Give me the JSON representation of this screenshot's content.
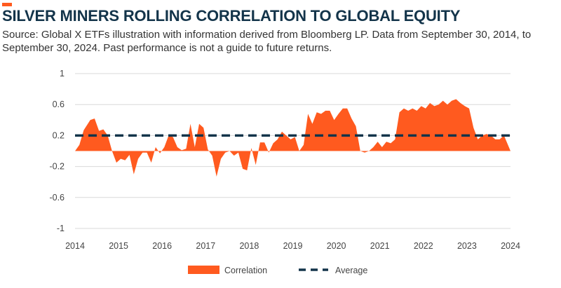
{
  "header": {
    "title": "SILVER MINERS ROLLING CORRELATION TO GLOBAL EQUITY",
    "subtitle": "Source: Global X ETFs illustration with information derived from Bloomberg LP. Data from September 30, 2014, to September 30, 2024. Past performance is not a guide to future returns."
  },
  "colors": {
    "accent": "#ff5a1f",
    "area": "#ff5a1f",
    "average_line": "#13344a",
    "title": "#13344a",
    "grid": "#d9d9d9"
  },
  "chart_data": {
    "type": "area",
    "title": "SILVER MINERS ROLLING CORRELATION TO GLOBAL EQUITY",
    "xlabel": "",
    "ylabel": "",
    "xlim": [
      2014,
      2024
    ],
    "ylim": [
      -1,
      1
    ],
    "grid": true,
    "legend_position": "bottom-center",
    "x_ticks": [
      "2014",
      "2015",
      "2016",
      "2017",
      "2018",
      "2019",
      "2020",
      "2021",
      "2022",
      "2023",
      "2024"
    ],
    "y_ticks": [
      {
        "value": 1,
        "label": "1"
      },
      {
        "value": 0.6,
        "label": "0.6"
      },
      {
        "value": 0.2,
        "label": "0.2"
      },
      {
        "value": -0.2,
        "label": "-0.2"
      },
      {
        "value": -0.6,
        "label": "-0.6"
      },
      {
        "value": -1,
        "label": "-1"
      }
    ],
    "series": [
      {
        "name": "Correlation",
        "kind": "area",
        "x": [
          2014.0,
          2014.1,
          2014.2,
          2014.35,
          2014.45,
          2014.55,
          2014.65,
          2014.75,
          2014.85,
          2014.95,
          2015.05,
          2015.15,
          2015.25,
          2015.35,
          2015.45,
          2015.55,
          2015.65,
          2015.75,
          2015.85,
          2015.95,
          2016.05,
          2016.15,
          2016.25,
          2016.35,
          2016.45,
          2016.55,
          2016.65,
          2016.75,
          2016.85,
          2016.95,
          2017.05,
          2017.15,
          2017.25,
          2017.35,
          2017.45,
          2017.55,
          2017.65,
          2017.75,
          2017.85,
          2017.95,
          2018.05,
          2018.15,
          2018.25,
          2018.35,
          2018.45,
          2018.55,
          2018.65,
          2018.75,
          2018.85,
          2018.95,
          2019.05,
          2019.15,
          2019.25,
          2019.35,
          2019.45,
          2019.55,
          2019.65,
          2019.75,
          2019.85,
          2019.95,
          2020.05,
          2020.15,
          2020.25,
          2020.35,
          2020.45,
          2020.55,
          2020.65,
          2020.75,
          2020.85,
          2020.95,
          2021.05,
          2021.15,
          2021.25,
          2021.35,
          2021.45,
          2021.55,
          2021.65,
          2021.75,
          2021.85,
          2021.95,
          2022.05,
          2022.15,
          2022.25,
          2022.35,
          2022.45,
          2022.55,
          2022.65,
          2022.75,
          2022.85,
          2022.95,
          2023.05,
          2023.15,
          2023.25,
          2023.35,
          2023.45,
          2023.55,
          2023.65,
          2023.75,
          2023.85,
          2024.0
        ],
        "values": [
          0.0,
          0.08,
          0.27,
          0.4,
          0.42,
          0.26,
          0.28,
          0.2,
          0.0,
          -0.15,
          -0.1,
          -0.12,
          -0.05,
          -0.3,
          -0.1,
          -0.02,
          -0.02,
          -0.15,
          0.05,
          -0.03,
          0.05,
          0.2,
          0.18,
          0.05,
          0.01,
          0.03,
          0.35,
          0.05,
          0.35,
          0.3,
          0.02,
          -0.06,
          -0.33,
          -0.1,
          -0.02,
          0.0,
          -0.06,
          -0.02,
          -0.23,
          -0.25,
          0.04,
          -0.18,
          0.11,
          0.11,
          -0.02,
          0.1,
          0.15,
          0.25,
          0.2,
          0.15,
          0.18,
          0.0,
          0.08,
          0.48,
          0.35,
          0.5,
          0.48,
          0.52,
          0.52,
          0.4,
          0.48,
          0.55,
          0.55,
          0.42,
          0.32,
          0.0,
          -0.02,
          0.0,
          0.05,
          0.12,
          0.05,
          0.12,
          0.1,
          0.15,
          0.5,
          0.55,
          0.52,
          0.55,
          0.52,
          0.58,
          0.55,
          0.62,
          0.58,
          0.6,
          0.65,
          0.6,
          0.65,
          0.67,
          0.62,
          0.58,
          0.55,
          0.3,
          0.15,
          0.2,
          0.22,
          0.2,
          0.15,
          0.15,
          0.2,
          0.0
        ]
      },
      {
        "name": "Average",
        "kind": "dashed-line",
        "value": 0.2
      }
    ]
  },
  "legend": {
    "correlation_label": "Correlation",
    "average_label": "Average"
  }
}
